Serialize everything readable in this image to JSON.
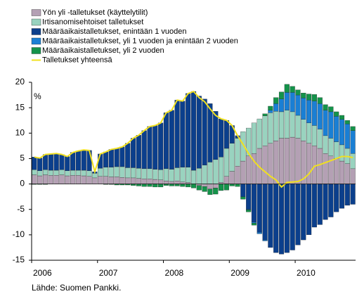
{
  "chart_data": {
    "type": "stacked_bar",
    "y_label": "%",
    "source": "Lähde: Suomen Pankki.",
    "categories": [
      "2006",
      null,
      null,
      null,
      null,
      null,
      null,
      null,
      null,
      null,
      null,
      null,
      "2007",
      null,
      null,
      null,
      null,
      null,
      null,
      null,
      null,
      null,
      null,
      null,
      "2008",
      null,
      null,
      null,
      null,
      null,
      null,
      null,
      null,
      null,
      null,
      null,
      "2009",
      null,
      null,
      null,
      null,
      null,
      null,
      null,
      null,
      null,
      null,
      null,
      "2010",
      null,
      null,
      null,
      null,
      null,
      null,
      null,
      null,
      null,
      null
    ],
    "ylim": [
      -15,
      20
    ],
    "yticks": [
      -15,
      -10,
      -5,
      0,
      5,
      10,
      15,
      20
    ],
    "legend": "top-left",
    "series": [
      {
        "name": "Yön yli -talletukset (käyttelytilit)",
        "color": "#b4a0b4",
        "values": [
          1.8,
          1.6,
          1.8,
          1.7,
          1.7,
          1.8,
          1.6,
          1.7,
          1.7,
          1.6,
          1.5,
          1.2,
          1.5,
          1.5,
          1.4,
          1.4,
          1.3,
          1.2,
          1.2,
          1.1,
          1.0,
          1.0,
          0.9,
          0.8,
          0.6,
          0.5,
          0.6,
          0.4,
          0.3,
          0.0,
          -0.3,
          -0.5,
          -1.0,
          -0.8,
          0.3,
          1.5,
          2.5,
          3.5,
          4.5,
          5.5,
          6.0,
          7.0,
          7.5,
          8.0,
          8.5,
          9.0,
          9.0,
          9.2,
          9.0,
          8.5,
          8.0,
          7.5,
          7.0,
          6.0,
          5.5,
          5.0,
          4.5,
          4.0,
          3.0
        ]
      },
      {
        "name": "Irtisanomisehtoiset talletukset",
        "color": "#99d3bf",
        "values": [
          1.0,
          1.0,
          1.0,
          1.0,
          1.0,
          1.0,
          1.0,
          1.0,
          1.0,
          1.1,
          1.1,
          0.9,
          1.6,
          1.8,
          1.9,
          2.0,
          2.1,
          2.0,
          2.0,
          2.0,
          2.0,
          2.0,
          2.0,
          2.0,
          2.4,
          2.4,
          2.6,
          2.9,
          3.0,
          2.7,
          3.1,
          3.7,
          4.3,
          4.8,
          5.0,
          5.5,
          5.5,
          5.5,
          5.8,
          5.5,
          6.0,
          5.8,
          5.9,
          6.0,
          5.8,
          5.2,
          5.5,
          5.0,
          4.5,
          4.2,
          4.0,
          4.0,
          3.8,
          3.5,
          3.5,
          3.3,
          3.2,
          3.0,
          3.0
        ]
      },
      {
        "name": "Määräaikaistalletukset, enintään 1 vuoden",
        "color": "#0b3f8c",
        "values": [
          2.5,
          2.5,
          3.0,
          3.2,
          3.3,
          3.0,
          2.8,
          3.5,
          3.8,
          4.0,
          4.0,
          0.3,
          2.8,
          3.0,
          3.5,
          3.6,
          3.9,
          4.8,
          5.8,
          6.5,
          7.5,
          8.3,
          8.6,
          9.2,
          11.0,
          11.6,
          13.3,
          13.0,
          14.5,
          15.5,
          14.2,
          13.0,
          11.5,
          9.5,
          7.5,
          5.5,
          3.5,
          0.5,
          -2.5,
          -5.0,
          -7.5,
          -9.5,
          -11.0,
          -12.5,
          -13.5,
          -13.8,
          -13.5,
          -13.0,
          -12.0,
          -11.0,
          -10.0,
          -8.5,
          -8.0,
          -7.0,
          -6.5,
          -5.5,
          -4.8,
          -4.2,
          -4.0
        ]
      },
      {
        "name": "Määräaikaistalletukset, yli 1 vuoden ja enintään 2 vuoden",
        "color": "#1a7fd4",
        "values": [
          0,
          0,
          0,
          0,
          0,
          0,
          0,
          0,
          0,
          0,
          0,
          0,
          0,
          0,
          0,
          0,
          0,
          0,
          0,
          0,
          0,
          0,
          0,
          0,
          0,
          0,
          0,
          0,
          0,
          0,
          0,
          0,
          0,
          0,
          0,
          0,
          0,
          0,
          0,
          -0.1,
          -0.2,
          -0.3,
          -0.2,
          0.5,
          1.5,
          2.5,
          3.5,
          3.8,
          4.0,
          4.2,
          4.5,
          4.8,
          5.0,
          5.0,
          5.2,
          5.0,
          5.0,
          4.8,
          4.5
        ]
      },
      {
        "name": "Määräaikaistalletukset, yli 2 vuoden",
        "color": "#14934a",
        "values": [
          -0.1,
          -0.1,
          -0.1,
          0,
          0,
          0,
          0,
          0,
          0,
          0,
          0,
          0,
          0,
          -0.1,
          -0.1,
          -0.2,
          -0.2,
          -0.2,
          -0.3,
          -0.4,
          -0.5,
          -0.5,
          -0.6,
          -0.6,
          -0.3,
          -0.4,
          -0.4,
          -0.5,
          -0.6,
          -0.8,
          -0.9,
          -1.0,
          -1.1,
          -1.2,
          -1.3,
          -1.2,
          -0.4,
          -0.5,
          -0.5,
          -0.4,
          -0.4,
          0.0,
          0.4,
          0.8,
          1.2,
          1.4,
          1.6,
          1.2,
          1.0,
          1.0,
          1.2,
          1.3,
          1.2,
          1.1,
          1.0,
          0.9,
          0.8,
          0.7,
          0.8
        ]
      }
    ],
    "line_series": {
      "name": "Talletukset yhteensä",
      "color": "#f0e020",
      "values": [
        5.3,
        5.1,
        5.8,
        5.9,
        6.0,
        5.8,
        5.4,
        6.2,
        6.5,
        6.7,
        6.6,
        2.4,
        5.9,
        6.3,
        6.8,
        7.0,
        7.3,
        8.0,
        9.0,
        9.6,
        10.5,
        11.3,
        11.5,
        12.0,
        14.0,
        14.5,
        16.5,
        16.3,
        17.8,
        18.2,
        17.0,
        16.2,
        14.8,
        13.5,
        12.8,
        12.5,
        11.5,
        9.5,
        7.8,
        6.0,
        4.5,
        3.3,
        2.4,
        1.5,
        0.8,
        -0.6,
        0.3,
        0.4,
        0.5,
        1.0,
        2.0,
        3.5,
        3.8,
        4.2,
        4.6,
        5.0,
        5.4,
        5.4,
        5.2
      ]
    }
  }
}
